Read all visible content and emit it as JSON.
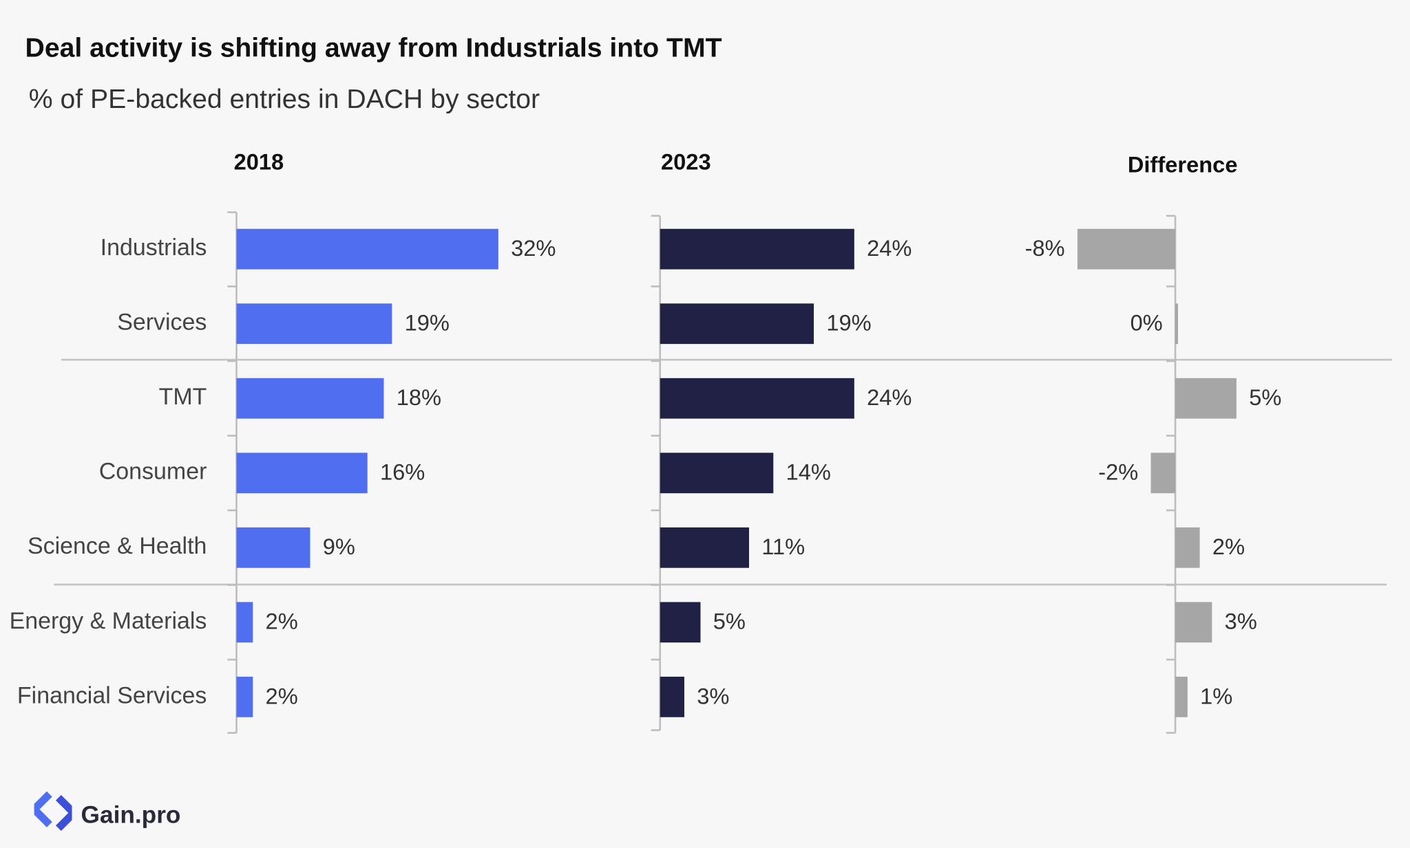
{
  "title": "Deal activity is shifting away from Industrials into TMT",
  "subtitle": "% of PE-backed entries in DACH by sector",
  "brand": "Gain.pro",
  "chart_data": [
    {
      "type": "bar",
      "title": "2018",
      "categories": [
        "Industrials",
        "Services",
        "TMT",
        "Consumer",
        "Science & Health",
        "Energy & Materials",
        "Financial Services"
      ],
      "values": [
        32,
        19,
        18,
        16,
        9,
        2,
        2
      ],
      "value_labels": [
        "32%",
        "19%",
        "18%",
        "16%",
        "9%",
        "2%",
        "2%"
      ],
      "color": "#4f6ef0"
    },
    {
      "type": "bar",
      "title": "2023",
      "values": [
        24,
        19,
        24,
        14,
        11,
        5,
        3
      ],
      "value_labels": [
        "24%",
        "19%",
        "24%",
        "14%",
        "11%",
        "5%",
        "3%"
      ],
      "color": "#212146"
    },
    {
      "type": "bar",
      "title": "Difference",
      "values": [
        -8,
        0,
        5,
        -2,
        2,
        3,
        1
      ],
      "value_labels": [
        "-8%",
        "0%",
        "5%",
        "-2%",
        "2%",
        "3%",
        "1%"
      ],
      "color": "#a6a6a6"
    }
  ]
}
